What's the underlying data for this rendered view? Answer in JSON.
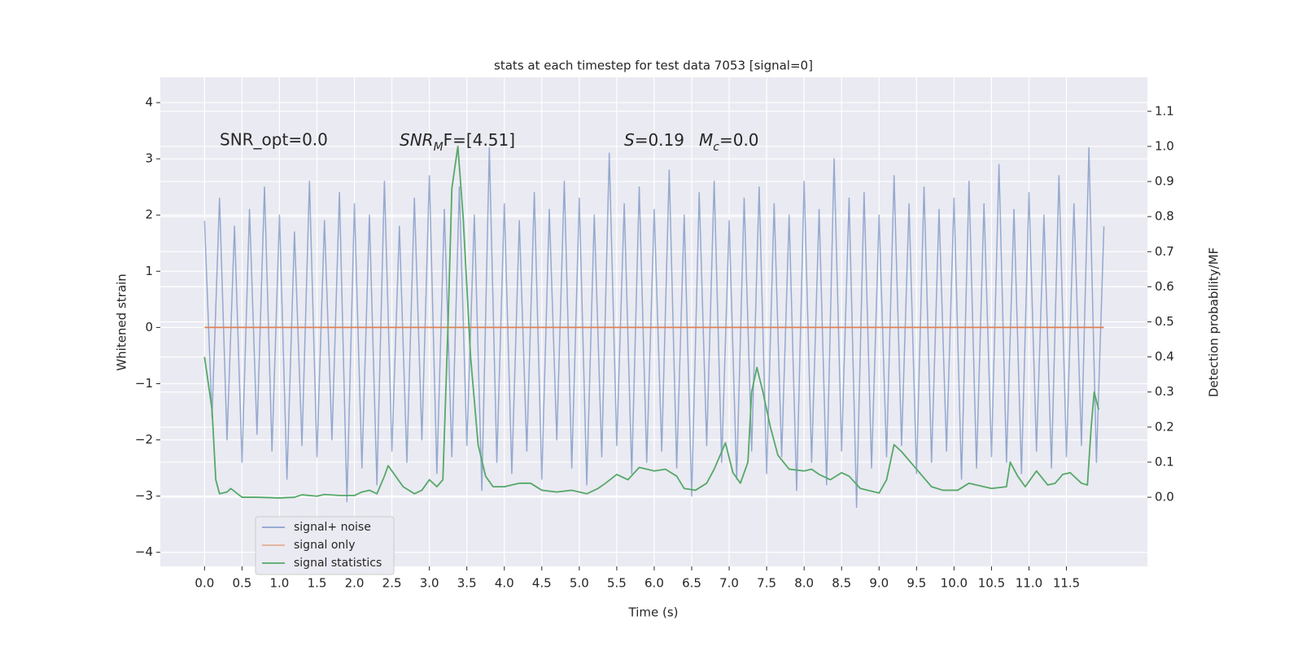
{
  "chart_data": {
    "type": "line",
    "title": "stats at each timestep for test data 7053 [signal=0]",
    "xlabel": "Time (s)",
    "ylabel": "Whitened strain",
    "y2label": "Detection probability/MF",
    "annotations": [
      "SNR_opt=0.0",
      [
        "SNR",
        "M",
        "F=[4.51]"
      ],
      [
        "S",
        "=0.19"
      ],
      [
        "M",
        "c",
        "=0.0"
      ]
    ],
    "xlim": [
      -0.59,
      12.58
    ],
    "ylim": [
      -4.25,
      4.45
    ],
    "y2lim": [
      -0.197,
      1.197
    ],
    "xticks": [
      {
        "value": 0,
        "label": "0.0"
      },
      0.5,
      {
        "value": 1,
        "label": "1.0"
      },
      1.5,
      {
        "value": 2,
        "label": "2.0"
      },
      2.5,
      {
        "value": 3,
        "label": "3.0"
      },
      3.5,
      {
        "value": 4,
        "label": "4.0"
      },
      4.5,
      {
        "value": 5,
        "label": "5.0"
      },
      5.5,
      {
        "value": 6,
        "label": "6.0"
      },
      6.5,
      {
        "value": 7,
        "label": "7.0"
      },
      7.5,
      {
        "value": 8,
        "label": "8.0"
      },
      8.5,
      {
        "value": 9,
        "label": "9.0"
      },
      9.5,
      {
        "value": 10,
        "label": "10.0"
      },
      10.5,
      {
        "value": 11,
        "label": "11.0"
      },
      11.5
    ],
    "yticks": [
      {
        "value": -4,
        "label": "−4"
      },
      {
        "value": -3,
        "label": "−3"
      },
      {
        "value": -2,
        "label": "−2"
      },
      {
        "value": -1,
        "label": "−1"
      },
      0,
      1,
      2,
      3,
      4
    ],
    "y2ticks": [
      {
        "value": 0,
        "label": "0.0"
      },
      0.1,
      0.2,
      0.3,
      0.4,
      0.5,
      0.6,
      0.7,
      0.8,
      0.9,
      {
        "value": 1,
        "label": "1.0"
      },
      1.1
    ],
    "grid": true,
    "legend_loc": "lower left",
    "series": [
      {
        "name": "signal+ noise",
        "color": "#4c72b0",
        "x": [
          0,
          0.1,
          0.2,
          0.3,
          0.4,
          0.5,
          0.6,
          0.7,
          0.8,
          0.9,
          1.0,
          1.1,
          1.2,
          1.3,
          1.4,
          1.5,
          1.6,
          1.7,
          1.8,
          1.9,
          2.0,
          2.1,
          2.2,
          2.3,
          2.4,
          2.5,
          2.6,
          2.7,
          2.8,
          2.9,
          3.0,
          3.1,
          3.2,
          3.3,
          3.4,
          3.5,
          3.6,
          3.7,
          3.8,
          3.9,
          4.0,
          4.1,
          4.2,
          4.3,
          4.4,
          4.5,
          4.6,
          4.7,
          4.8,
          4.9,
          5.0,
          5.1,
          5.2,
          5.3,
          5.4,
          5.5,
          5.6,
          5.7,
          5.8,
          5.9,
          6.0,
          6.1,
          6.2,
          6.3,
          6.4,
          6.5,
          6.6,
          6.7,
          6.8,
          6.9,
          7.0,
          7.1,
          7.2,
          7.3,
          7.4,
          7.5,
          7.6,
          7.7,
          7.8,
          7.9,
          8.0,
          8.1,
          8.2,
          8.3,
          8.4,
          8.5,
          8.6,
          8.7,
          8.8,
          8.9,
          9.0,
          9.1,
          9.2,
          9.3,
          9.4,
          9.5,
          9.6,
          9.7,
          9.8,
          9.9,
          10.0,
          10.1,
          10.2,
          10.3,
          10.4,
          10.5,
          10.6,
          10.7,
          10.8,
          10.9,
          11.0,
          11.1,
          11.2,
          11.3,
          11.4,
          11.5,
          11.6,
          11.7,
          11.8,
          11.9,
          12.0
        ],
        "values": [
          1.9,
          -1.6,
          2.3,
          -2.0,
          1.8,
          -2.4,
          2.1,
          -1.9,
          2.5,
          -2.2,
          2.0,
          -2.7,
          1.7,
          -2.1,
          2.6,
          -2.3,
          1.9,
          -2.0,
          2.4,
          -3.1,
          2.2,
          -2.5,
          2.0,
          -2.8,
          2.6,
          -2.2,
          1.8,
          -2.4,
          2.3,
          -2.0,
          2.7,
          -2.6,
          2.1,
          -2.3,
          2.5,
          -2.1,
          2.0,
          -2.9,
          3.2,
          -2.4,
          2.2,
          -2.6,
          1.9,
          -2.2,
          2.4,
          -2.7,
          2.1,
          -2.0,
          2.6,
          -2.5,
          2.3,
          -2.8,
          2.0,
          -2.3,
          3.1,
          -2.1,
          2.2,
          -2.6,
          2.5,
          -2.4,
          2.1,
          -2.2,
          2.8,
          -2.5,
          2.0,
          -3.0,
          2.4,
          -2.1,
          2.6,
          -2.4,
          1.9,
          -2.7,
          2.3,
          -2.2,
          2.5,
          -2.6,
          2.2,
          -2.3,
          2.0,
          -2.9,
          2.6,
          -2.4,
          2.1,
          -2.8,
          3.0,
          -2.2,
          2.3,
          -3.2,
          2.4,
          -2.5,
          2.0,
          -2.3,
          2.7,
          -2.1,
          2.2,
          -2.6,
          2.5,
          -2.4,
          2.1,
          -2.2,
          2.3,
          -2.7,
          2.6,
          -2.5,
          2.2,
          -2.3,
          2.9,
          -2.4,
          2.1,
          -2.6,
          2.4,
          -2.2,
          2.0,
          -2.5,
          2.7,
          -2.3,
          2.2,
          -2.1,
          3.2,
          -2.4,
          1.8
        ]
      },
      {
        "name": "signal only",
        "color": "#dd8452",
        "x": [
          0,
          12.0
        ],
        "values": [
          0,
          0
        ]
      },
      {
        "name": "signal statistics",
        "color": "#55a868",
        "axis": "y2",
        "x": [
          0,
          0.1,
          0.15,
          0.2,
          0.3,
          0.35,
          0.5,
          0.7,
          1.0,
          1.2,
          1.3,
          1.5,
          1.6,
          1.8,
          2.0,
          2.1,
          2.2,
          2.3,
          2.4,
          2.45,
          2.55,
          2.65,
          2.8,
          2.9,
          3.0,
          3.1,
          3.18,
          3.25,
          3.3,
          3.38,
          3.45,
          3.55,
          3.65,
          3.75,
          3.85,
          4.0,
          4.2,
          4.35,
          4.5,
          4.7,
          4.9,
          5.1,
          5.25,
          5.35,
          5.5,
          5.65,
          5.8,
          6.0,
          6.15,
          6.3,
          6.4,
          6.55,
          6.7,
          6.8,
          6.95,
          7.05,
          7.15,
          7.25,
          7.3,
          7.37,
          7.45,
          7.55,
          7.65,
          7.8,
          8.0,
          8.1,
          8.2,
          8.35,
          8.5,
          8.6,
          8.75,
          9.0,
          9.1,
          9.2,
          9.3,
          9.5,
          9.7,
          9.85,
          10.05,
          10.2,
          10.3,
          10.5,
          10.7,
          10.75,
          10.85,
          10.95,
          11.1,
          11.25,
          11.35,
          11.45,
          11.55,
          11.7,
          11.78,
          11.83,
          11.87,
          11.93
        ],
        "values": [
          0.4,
          0.25,
          0.05,
          0.01,
          0.015,
          0.025,
          0.0,
          0.0,
          -0.002,
          0.0,
          0.007,
          0.003,
          0.008,
          0.005,
          0.005,
          0.015,
          0.02,
          0.01,
          0.06,
          0.09,
          0.06,
          0.03,
          0.01,
          0.02,
          0.05,
          0.03,
          0.05,
          0.5,
          0.88,
          1.0,
          0.8,
          0.4,
          0.15,
          0.06,
          0.03,
          0.03,
          0.04,
          0.04,
          0.02,
          0.015,
          0.02,
          0.01,
          0.025,
          0.04,
          0.065,
          0.05,
          0.085,
          0.075,
          0.08,
          0.06,
          0.025,
          0.02,
          0.04,
          0.08,
          0.155,
          0.07,
          0.04,
          0.1,
          0.3,
          0.37,
          0.3,
          0.2,
          0.12,
          0.08,
          0.075,
          0.08,
          0.065,
          0.05,
          0.07,
          0.06,
          0.025,
          0.012,
          0.05,
          0.15,
          0.13,
          0.08,
          0.03,
          0.02,
          0.02,
          0.04,
          0.035,
          0.025,
          0.03,
          0.1,
          0.06,
          0.03,
          0.075,
          0.035,
          0.04,
          0.065,
          0.07,
          0.04,
          0.035,
          0.2,
          0.3,
          0.25
        ]
      }
    ]
  }
}
